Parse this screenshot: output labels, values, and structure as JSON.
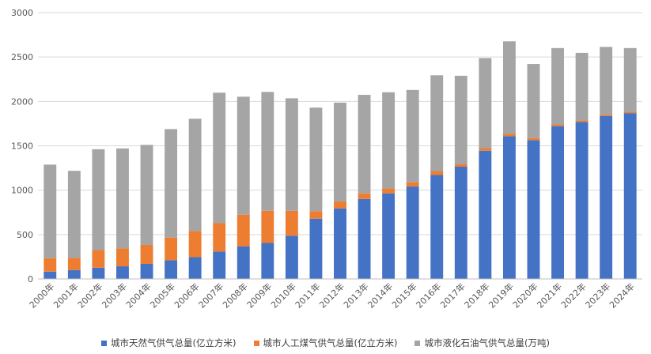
{
  "chart_data": {
    "type": "bar",
    "stacked": true,
    "title": "",
    "xlabel": "",
    "ylabel": "",
    "ylim": [
      0,
      3000
    ],
    "yticks": [
      "0",
      "500",
      "1000",
      "1500",
      "2000",
      "2500",
      "3000"
    ],
    "ytick_values": [
      0,
      500,
      1000,
      1500,
      2000,
      2500,
      3000
    ],
    "grid": true,
    "legend_position": "bottom",
    "categories": [
      "2000年",
      "2001年",
      "2002年",
      "2003年",
      "2004年",
      "2005年",
      "2006年",
      "2007年",
      "2008年",
      "2009年",
      "2010年",
      "2011年",
      "2012年",
      "2013年",
      "2014年",
      "2015年",
      "2016年",
      "2017年",
      "2018年",
      "2019年",
      "2020年",
      "2021年",
      "2022年",
      "2023年",
      "2024年"
    ],
    "series": [
      {
        "name": "城市天然气供气总量(亿立方米)",
        "color": "#4472C4",
        "values": [
          82,
          100,
          126,
          142,
          169,
          210,
          245,
          309,
          368,
          405,
          487,
          679,
          795,
          901,
          964,
          1041,
          1171,
          1264,
          1444,
          1608,
          1564,
          1721,
          1768,
          1834,
          1868
        ]
      },
      {
        "name": "城市人工煤气供气总量(亿立方米)",
        "color": "#ED7D31",
        "values": [
          152,
          137,
          199,
          202,
          214,
          256,
          296,
          322,
          356,
          362,
          280,
          85,
          77,
          63,
          56,
          48,
          44,
          27,
          29,
          28,
          23,
          19,
          18,
          16,
          14
        ]
      },
      {
        "name": "城市液化石油气供气总量(万吨)",
        "color": "#A5A5A5",
        "values": [
          1054,
          981,
          1136,
          1126,
          1127,
          1222,
          1264,
          1467,
          1329,
          1340,
          1268,
          1166,
          1114,
          1110,
          1083,
          1040,
          1079,
          998,
          1015,
          1041,
          834,
          861,
          761,
          764,
          719
        ]
      }
    ]
  }
}
